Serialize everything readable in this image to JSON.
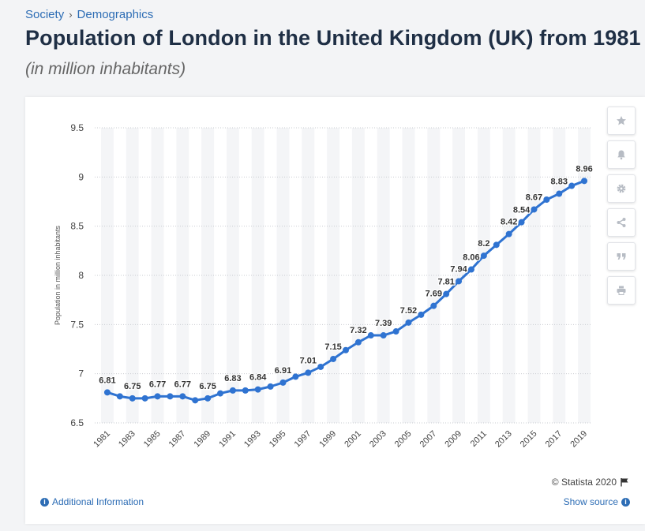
{
  "breadcrumb": {
    "items": [
      "Society",
      "Demographics"
    ],
    "separator": "›"
  },
  "title": "Population of London in the United Kingdom (UK) from 1981",
  "subtitle": "(in million inhabitants)",
  "toolbar": {
    "icons": [
      "star-icon",
      "bell-icon",
      "gear-icon",
      "share-icon",
      "quote-icon",
      "print-icon"
    ]
  },
  "footer": {
    "copyright": "© Statista 2020",
    "additional_info": "Additional Information",
    "show_source": "Show source"
  },
  "colors": {
    "line": "#2f73d1",
    "band": "#f4f5f7",
    "link": "#2d6db5"
  },
  "chart_data": {
    "type": "line",
    "ylabel": "Population in million inhabitants",
    "xlabel": "",
    "ylim": [
      6.5,
      9.5
    ],
    "yticks": [
      "6.5",
      "7",
      "7.5",
      "8",
      "8.5",
      "9",
      "9.5"
    ],
    "grid": true,
    "x": [
      1981,
      1982,
      1983,
      1984,
      1985,
      1986,
      1987,
      1988,
      1989,
      1990,
      1991,
      1992,
      1993,
      1994,
      1995,
      1996,
      1997,
      1998,
      1999,
      2000,
      2001,
      2002,
      2003,
      2004,
      2005,
      2006,
      2007,
      2008,
      2009,
      2010,
      2011,
      2012,
      2013,
      2014,
      2015,
      2016,
      2017,
      2018,
      2019
    ],
    "xtick_labels": [
      "1981",
      "1983",
      "1985",
      "1987",
      "1989",
      "1991",
      "1993",
      "1995",
      "1997",
      "1999",
      "2001",
      "2003",
      "2005",
      "2007",
      "2009",
      "2011",
      "2013",
      "2015",
      "2017",
      "2019"
    ],
    "series": [
      {
        "values": [
          6.81,
          6.77,
          6.75,
          6.75,
          6.77,
          6.77,
          6.77,
          6.73,
          6.75,
          6.8,
          6.83,
          6.83,
          6.84,
          6.87,
          6.91,
          6.97,
          7.01,
          7.07,
          7.15,
          7.24,
          7.32,
          7.39,
          7.39,
          7.43,
          7.52,
          7.6,
          7.69,
          7.81,
          7.94,
          8.06,
          8.2,
          8.31,
          8.42,
          8.54,
          8.67,
          8.77,
          8.83,
          8.91,
          8.96
        ],
        "data_labels": [
          "6.81",
          "",
          "6.75",
          "",
          "6.77",
          "",
          "6.77",
          "",
          "6.75",
          "",
          "6.83",
          "",
          "6.84",
          "",
          "6.91",
          "",
          "7.01",
          "",
          "7.15",
          "",
          "7.32",
          "",
          "7.39",
          "",
          "7.52",
          "",
          "7.69",
          "7.81",
          "7.94",
          "8.06",
          "8.2",
          "",
          "8.42",
          "8.54",
          "8.67",
          "",
          "8.83",
          "",
          "8.96"
        ]
      }
    ]
  }
}
